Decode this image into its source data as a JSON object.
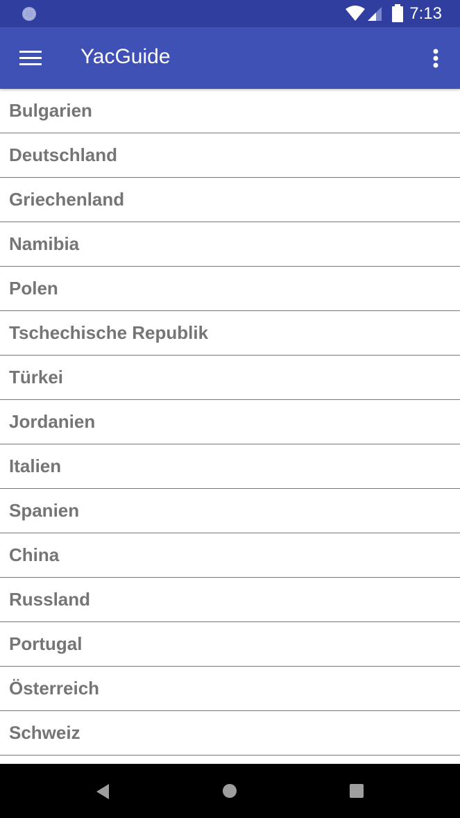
{
  "status_bar": {
    "time": "7:13",
    "icons": [
      "notification-icon",
      "wifi-icon",
      "signal-icon",
      "battery-icon"
    ]
  },
  "app_bar": {
    "title": "YacGuide",
    "menu_icon": "hamburger-menu-icon",
    "overflow_icon": "more-vert-icon"
  },
  "countries": [
    "Bulgarien",
    "Deutschland",
    "Griechenland",
    "Namibia",
    "Polen",
    "Tschechische Republik",
    "Türkei",
    "Jordanien",
    "Italien",
    "Spanien",
    "China",
    "Russland",
    "Portugal",
    "Österreich",
    "Schweiz",
    ""
  ],
  "colors": {
    "primary": "#3F51B5",
    "primary_dark": "#303F9F",
    "text": "#757575"
  },
  "nav_bar": {
    "icons": [
      "back-icon",
      "home-icon",
      "recents-icon"
    ]
  }
}
